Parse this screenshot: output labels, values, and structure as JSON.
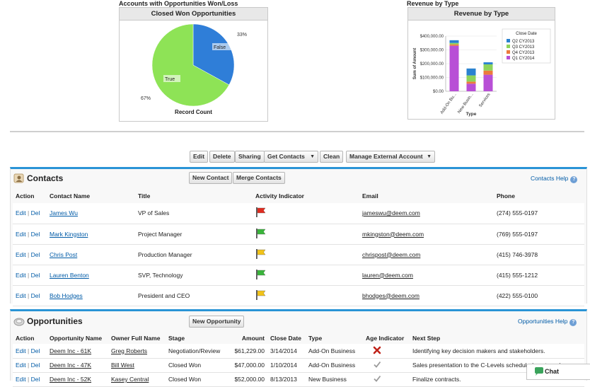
{
  "pie_panel": {
    "outer_title": "Accounts with Opportunities Won/Loss",
    "header": "Closed Won Opportunities",
    "footer": "Record Count",
    "slices": [
      {
        "label": "False",
        "pct_label": "33%",
        "value": 33,
        "color": "#2f7ed8"
      },
      {
        "label": "True",
        "pct_label": "67%",
        "value": 67,
        "color": "#8ee356"
      }
    ]
  },
  "bar_panel": {
    "outer_title": "Revenue by Type",
    "header": "Revenue by Type",
    "ylabel": "Sum of Amount",
    "xlabel": "Type",
    "legend_title": "Close Date"
  },
  "chart_data": {
    "type": "bar",
    "title": "Revenue by Type",
    "xlabel": "Type",
    "ylabel": "Sum of Amount",
    "categories": [
      "Add-On Bu...",
      "New Busin...",
      "Services"
    ],
    "ylim": [
      0,
      400000
    ],
    "yticks": [
      "$400,000.00",
      "$300,000.00",
      "$200,000.00",
      "$100,000.00",
      "$0.00"
    ],
    "stacked": true,
    "series": [
      {
        "name": "Q1 CY2014",
        "color": "#b84fd6",
        "values": [
          330000,
          55000,
          120000
        ]
      },
      {
        "name": "Q4 CY2013",
        "color": "#ec7a3b",
        "values": [
          10000,
          15000,
          30000
        ]
      },
      {
        "name": "Q3 CY2013",
        "color": "#8ed35a",
        "values": [
          10000,
          45000,
          45000
        ]
      },
      {
        "name": "Q2 CY2013",
        "color": "#2a82d0",
        "values": [
          20000,
          50000,
          15000
        ]
      }
    ],
    "legend_order": [
      "Q2 CY2013",
      "Q3 CY2013",
      "Q4 CY2013",
      "Q1 CY2014"
    ]
  },
  "toolbar": {
    "edit": "Edit",
    "delete": "Delete",
    "sharing": "Sharing",
    "get_contacts": "Get Contacts",
    "clean": "Clean",
    "manage_external": "Manage External Account"
  },
  "contacts": {
    "title": "Contacts",
    "new_btn": "New Contact",
    "merge_btn": "Merge Contacts",
    "help": "Contacts Help",
    "columns": [
      "Action",
      "Contact Name",
      "Title",
      "Activity Indicator",
      "Email",
      "Phone"
    ],
    "rows": [
      {
        "edit": "Edit",
        "sep": "|",
        "del": "Del",
        "name": "James Wu",
        "title": "VP of Sales",
        "flag": "red",
        "email": "jameswu@deem.com",
        "phone": "(274) 555-0197"
      },
      {
        "edit": "Edit",
        "sep": "|",
        "del": "Del",
        "name": "Mark Kingston",
        "title": "Project Manager",
        "flag": "green",
        "email": "mkingston@deem.com",
        "phone": "(769) 555-0197"
      },
      {
        "edit": "Edit",
        "sep": "|",
        "del": "Del",
        "name": "Chris Post",
        "title": "Production Manager",
        "flag": "yellow",
        "email": "chrispost@deem.com",
        "phone": "(415) 746-3978"
      },
      {
        "edit": "Edit",
        "sep": "|",
        "del": "Del",
        "name": "Lauren Benton",
        "title": "SVP, Technology",
        "flag": "green",
        "email": "lauren@deem.com",
        "phone": "(415) 555-1212"
      },
      {
        "edit": "Edit",
        "sep": "|",
        "del": "Del",
        "name": "Bob Hodges",
        "title": "President and CEO",
        "flag": "yellow",
        "email": "bhodges@deem.com",
        "phone": "(422) 555-0100"
      }
    ]
  },
  "opportunities": {
    "title": "Opportunities",
    "new_btn": "New Opportunity",
    "help": "Opportunities Help",
    "columns": [
      "Action",
      "Opportunity Name",
      "Owner Full Name",
      "Stage",
      "Amount",
      "Close Date",
      "Type",
      "Age Indicator",
      "Next Step"
    ],
    "rows": [
      {
        "edit": "Edit",
        "sep": "|",
        "del": "Del",
        "name": "Deem Inc - 61K",
        "owner": "Greg Roberts",
        "stage": "Negotiation/Review",
        "amount": "$61,229.00",
        "date": "3/14/2014",
        "type": "Add-On Business",
        "age": "x",
        "next": "Identifying key decision makers and stakeholders."
      },
      {
        "edit": "Edit",
        "sep": "|",
        "del": "Del",
        "name": "Deem Inc - 47K",
        "owner": "Bill West",
        "stage": "Closed Won",
        "amount": "$47,000.00",
        "date": "1/10/2014",
        "type": "Add-On Business",
        "age": "check",
        "next": "Sales presentation to the C-Levels scheduled next week"
      },
      {
        "edit": "Edit",
        "sep": "|",
        "del": "Del",
        "name": "Deem Inc - 52K",
        "owner": "Kasey Central",
        "stage": "Closed Won",
        "amount": "$52,000.00",
        "date": "8/13/2013",
        "type": "New Business",
        "age": "check",
        "next": "Finalize contracts."
      }
    ]
  },
  "chat": {
    "label": "Chat"
  }
}
